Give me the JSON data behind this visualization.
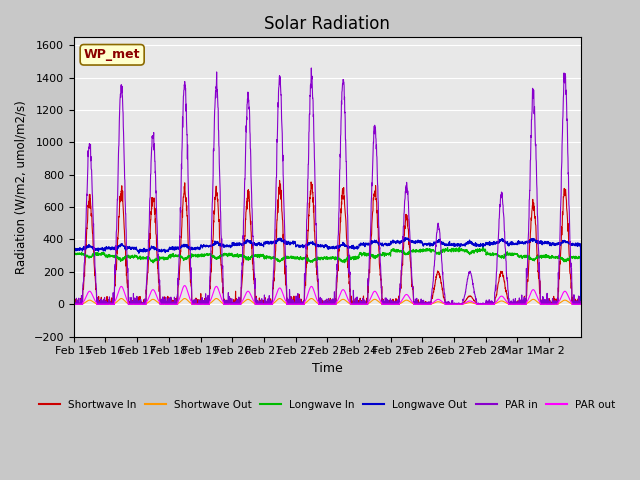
{
  "title": "Solar Radiation",
  "xlabel": "Time",
  "ylabel": "Radiation (W/m2, umol/m2/s)",
  "ylim": [
    -200,
    1650
  ],
  "yticks": [
    -200,
    0,
    200,
    400,
    600,
    800,
    1000,
    1200,
    1400,
    1600
  ],
  "xtick_labels": [
    "Feb 15",
    "Feb 16",
    "Feb 17",
    "Feb 18",
    "Feb 19",
    "Feb 20",
    "Feb 21",
    "Feb 22",
    "Feb 23",
    "Feb 24",
    "Feb 25",
    "Feb 26",
    "Feb 27",
    "Feb 28",
    "Mar 1",
    "Mar 2"
  ],
  "annotation_text": "WP_met",
  "bg_color": "#e8e8e8",
  "plot_bg_color": "#e8e8e8",
  "colors": {
    "shortwave_in": "#cc0000",
    "shortwave_out": "#ff9900",
    "longwave_in": "#00bb00",
    "longwave_out": "#0000cc",
    "par_in": "#8800cc",
    "par_out": "#ff00ff"
  },
  "legend_labels": [
    "Shortwave In",
    "Shortwave Out",
    "Longwave In",
    "Longwave Out",
    "PAR in",
    "PAR out"
  ],
  "sw_in_peaks": [
    650,
    700,
    650,
    710,
    700,
    680,
    720,
    730,
    700,
    710,
    540,
    200,
    50,
    200,
    620,
    700
  ],
  "par_in_peaks": [
    980,
    1350,
    1050,
    1360,
    1360,
    1280,
    1390,
    1400,
    1390,
    1100,
    730,
    490,
    200,
    680,
    1300,
    1430
  ],
  "par_out_peaks": [
    80,
    110,
    90,
    115,
    110,
    80,
    100,
    110,
    90,
    80,
    60,
    30,
    20,
    50,
    90,
    80
  ],
  "sw_out_peaks": [
    25,
    35,
    30,
    35,
    35,
    30,
    35,
    35,
    30,
    30,
    25,
    15,
    10,
    20,
    30,
    25
  ],
  "lw_in_base": [
    310,
    295,
    285,
    300,
    305,
    300,
    290,
    285,
    285,
    310,
    330,
    335,
    335,
    310,
    295,
    290
  ],
  "lw_out_base": [
    340,
    345,
    330,
    345,
    360,
    370,
    380,
    360,
    350,
    370,
    385,
    370,
    365,
    375,
    380,
    370
  ]
}
